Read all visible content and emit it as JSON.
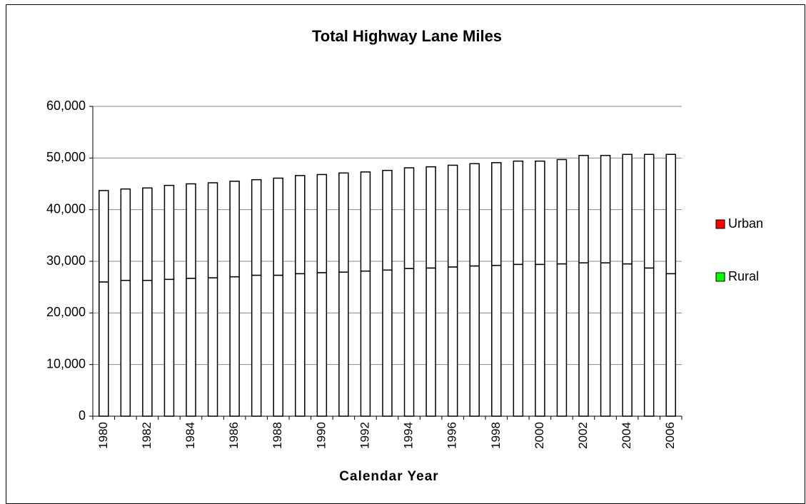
{
  "chart_data": {
    "type": "stacked_bar",
    "title": "Total Highway Lane Miles",
    "x_label": "Calendar Year",
    "categories": [
      "1980",
      null,
      "1982",
      null,
      "1984",
      null,
      "1986",
      null,
      "1988",
      null,
      "1990",
      null,
      "1992",
      null,
      "1994",
      null,
      "1996",
      null,
      "1998",
      null,
      "2000",
      null,
      "2002",
      null,
      "2004",
      null,
      "2006"
    ],
    "series": [
      {
        "name": "Rural",
        "color": "#00ff00",
        "values": [
          26000,
          26300,
          26300,
          26500,
          26700,
          26800,
          27000,
          27300,
          27300,
          27600,
          27800,
          27900,
          28100,
          28300,
          28600,
          28700,
          28900,
          29100,
          29200,
          29400,
          29400,
          29500,
          29700,
          29700,
          29500,
          28700,
          27600
        ]
      },
      {
        "name": "Urban",
        "color": "#ff0000",
        "values": [
          17700,
          17700,
          17900,
          18200,
          18300,
          18400,
          18500,
          18500,
          18800,
          19000,
          19000,
          19200,
          19200,
          19300,
          19500,
          19600,
          19700,
          19800,
          19900,
          20000,
          20000,
          20200,
          20800,
          20800,
          21200,
          22000,
          23100
        ]
      }
    ],
    "bar_fill": "#ffffff",
    "ylim": [
      0,
      60000
    ],
    "yticks": [
      0,
      {
        "value": 10000,
        "label": "10,000"
      },
      {
        "value": 20000,
        "label": "20,000"
      },
      {
        "value": 30000,
        "label": "30,000"
      },
      {
        "value": 40000,
        "label": "40,000"
      },
      {
        "value": 50000,
        "label": "50,000"
      },
      {
        "value": 60000,
        "label": "60,000"
      }
    ],
    "grid": true,
    "legend": "right"
  }
}
